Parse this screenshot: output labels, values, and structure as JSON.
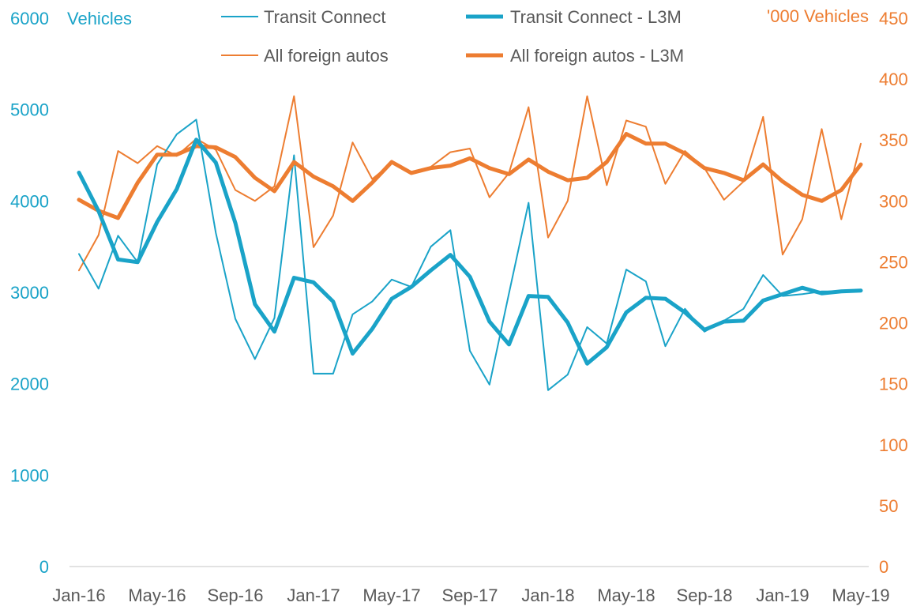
{
  "chart_data": {
    "type": "line",
    "x": [
      "Jan-16",
      "Feb-16",
      "Mar-16",
      "Apr-16",
      "May-16",
      "Jun-16",
      "Jul-16",
      "Aug-16",
      "Sep-16",
      "Oct-16",
      "Nov-16",
      "Dec-16",
      "Jan-17",
      "Feb-17",
      "Mar-17",
      "Apr-17",
      "May-17",
      "Jun-17",
      "Jul-17",
      "Aug-17",
      "Sep-17",
      "Oct-17",
      "Nov-17",
      "Dec-17",
      "Jan-18",
      "Feb-18",
      "Mar-18",
      "Apr-18",
      "May-18",
      "Jun-18",
      "Jul-18",
      "Aug-18",
      "Sep-18",
      "Oct-18",
      "Nov-18",
      "Dec-18",
      "Jan-19",
      "Feb-19",
      "Mar-19",
      "Apr-19",
      "May-19"
    ],
    "xtick_labels": [
      "Jan-16",
      "May-16",
      "Sep-16",
      "Jan-17",
      "May-17",
      "Sep-17",
      "Jan-18",
      "May-18",
      "Sep-18",
      "Jan-19",
      "May-19"
    ],
    "y_left": {
      "label": "Vehicles",
      "lim": [
        0,
        6000
      ],
      "ticks": [
        0,
        1000,
        2000,
        3000,
        4000,
        5000,
        6000
      ]
    },
    "y_right": {
      "label": "'000 Vehicles",
      "lim": [
        0,
        450
      ],
      "ticks": [
        0,
        50,
        100,
        150,
        200,
        250,
        300,
        350,
        400,
        450
      ]
    },
    "grid": false,
    "legend_position": "top",
    "series": [
      {
        "name": "Transit Connect",
        "axis": "left",
        "color": "#1aa3c8",
        "width": 2,
        "values": [
          3420,
          3040,
          3620,
          3330,
          4400,
          4730,
          4890,
          3650,
          2710,
          2270,
          2720,
          4500,
          2110,
          2110,
          2760,
          2900,
          3140,
          3060,
          3500,
          3680,
          2360,
          1990,
          2990,
          3980,
          1930,
          2100,
          2620,
          2440,
          3250,
          3120,
          2410,
          2820,
          2570,
          2690,
          2820,
          3190,
          2960,
          2980,
          3010,
          3010,
          3020
        ]
      },
      {
        "name": "Transit Connect - L3M",
        "axis": "left",
        "color": "#1aa3c8",
        "width": 5,
        "values": [
          4310,
          3890,
          3360,
          3330,
          3770,
          4130,
          4670,
          4420,
          3760,
          2870,
          2570,
          3160,
          3110,
          2900,
          2330,
          2600,
          2930,
          3060,
          3240,
          3410,
          3170,
          2680,
          2430,
          2960,
          2950,
          2670,
          2220,
          2400,
          2780,
          2940,
          2930,
          2780,
          2590,
          2680,
          2690,
          2910,
          2980,
          3050,
          2990,
          3010,
          3020
        ]
      },
      {
        "name": "All foreign autos",
        "axis": "right",
        "color": "#ed7d31",
        "width": 2,
        "values": [
          243,
          272,
          341,
          331,
          345,
          337,
          351,
          342,
          309,
          300,
          312,
          386,
          262,
          288,
          348,
          318,
          331,
          324,
          328,
          340,
          343,
          303,
          323,
          377,
          270,
          300,
          386,
          313,
          366,
          361,
          314,
          341,
          327,
          301,
          316,
          369,
          256,
          285,
          359,
          285,
          347
        ]
      },
      {
        "name": "All foreign autos - L3M",
        "axis": "right",
        "color": "#ed7d31",
        "width": 5,
        "values": [
          301,
          292,
          286,
          315,
          338,
          338,
          345,
          344,
          336,
          319,
          308,
          332,
          320,
          312,
          300,
          315,
          332,
          323,
          327,
          329,
          335,
          327,
          322,
          334,
          324,
          317,
          319,
          332,
          355,
          347,
          347,
          339,
          327,
          323,
          317,
          330,
          316,
          305,
          300,
          309,
          330
        ]
      }
    ]
  }
}
